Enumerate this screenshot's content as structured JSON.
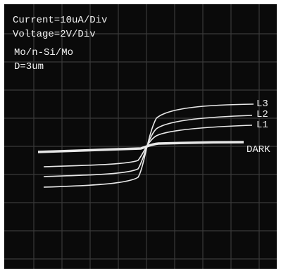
{
  "screen": {
    "settings": [
      "Current=10uA/Div",
      "Voltage=2V/Div"
    ],
    "sample": [
      "Mo/n-Si/Mo",
      "D=3um"
    ],
    "curve_labels": [
      "L3",
      "L2",
      "L1",
      "DARK"
    ]
  }
}
